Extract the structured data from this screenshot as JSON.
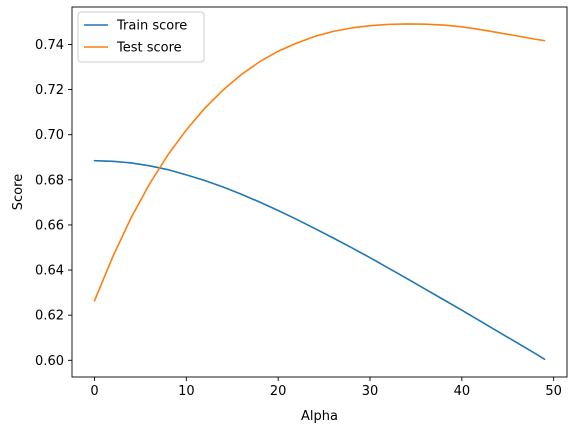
{
  "chart_data": {
    "type": "line",
    "xlabel": "Alpha",
    "ylabel": "Score",
    "xlim": [
      -2.45,
      51.45
    ],
    "ylim": [
      0.5926,
      0.7566
    ],
    "xticks": [
      0,
      10,
      20,
      30,
      40,
      50
    ],
    "yticks": [
      0.6,
      0.62,
      0.64,
      0.66,
      0.68,
      0.7,
      0.72,
      0.74
    ],
    "ytick_labels": [
      "0.60",
      "0.62",
      "0.64",
      "0.66",
      "0.68",
      "0.70",
      "0.72",
      "0.74"
    ],
    "grid": false,
    "legend": "upper-left",
    "x": [
      0,
      2,
      4,
      6,
      8,
      10,
      12,
      14,
      16,
      18,
      20,
      22,
      24,
      26,
      28,
      30,
      32,
      34,
      36,
      38,
      40,
      42,
      44,
      46,
      48,
      49
    ],
    "series": [
      {
        "name": "Train score",
        "color": "#1f77b4",
        "values": [
          0.6885,
          0.6882,
          0.6875,
          0.6862,
          0.6845,
          0.6822,
          0.6797,
          0.6768,
          0.6736,
          0.6701,
          0.6664,
          0.6625,
          0.6584,
          0.6542,
          0.6499,
          0.6455,
          0.6409,
          0.6363,
          0.6316,
          0.6269,
          0.6222,
          0.6174,
          0.6126,
          0.6078,
          0.603,
          0.6005
        ]
      },
      {
        "name": "Test score",
        "color": "#ff7f0e",
        "values": [
          0.6264,
          0.646,
          0.6633,
          0.6782,
          0.6911,
          0.7021,
          0.7117,
          0.7198,
          0.7267,
          0.7324,
          0.737,
          0.7406,
          0.7436,
          0.7458,
          0.7473,
          0.7483,
          0.7489,
          0.7491,
          0.749,
          0.7486,
          0.7478,
          0.7466,
          0.7452,
          0.7438,
          0.7423,
          0.7417
        ]
      }
    ]
  }
}
